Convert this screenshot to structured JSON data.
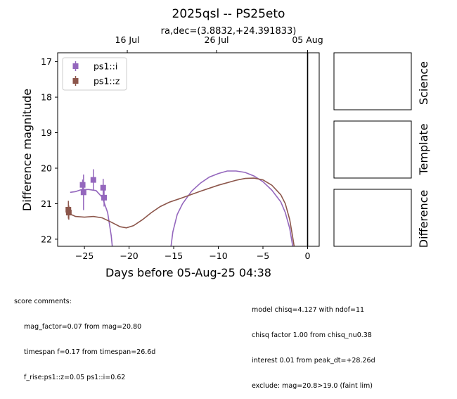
{
  "chart_data": {
    "type": "scatter",
    "title": "2025qsl -- PS25eto",
    "subtitle": "ra,dec=(3.8832,+24.391833)",
    "xlabel": "Days before 05-Aug-25 04:38",
    "ylabel": "Difference magnitude",
    "xlim": [
      -28,
      1.3
    ],
    "ylim": [
      22.2,
      16.75
    ],
    "y_inverted": true,
    "x_ticks": [
      -25,
      -20,
      -15,
      -10,
      -5,
      0
    ],
    "x_tick_labels": [
      "−25",
      "−20",
      "−15",
      "−10",
      "−5",
      "0"
    ],
    "y_ticks": [
      17,
      18,
      19,
      20,
      21,
      22
    ],
    "y_tick_labels": [
      "17",
      "18",
      "19",
      "20",
      "21",
      "22"
    ],
    "top_axis_ticks": [
      {
        "x": -20.2,
        "label": "16 Jul"
      },
      {
        "x": -10.2,
        "label": "26 Jul"
      },
      {
        "x": 0,
        "label": "05 Aug"
      }
    ],
    "vline_x": 0,
    "legend": {
      "placement": "top-left"
    },
    "series": [
      {
        "name": "ps1::i",
        "color": "#9467bd",
        "points": [
          {
            "x": -25.2,
            "y": 20.47,
            "err": 0.15
          },
          {
            "x": -25.1,
            "y": 20.68,
            "err": 0.5
          },
          {
            "x": -24.0,
            "y": 20.33,
            "err": 0.3
          },
          {
            "x": -22.9,
            "y": 20.55,
            "err": 0.25
          },
          {
            "x": -22.8,
            "y": 20.83,
            "err": 0.25
          }
        ],
        "model": [
          [
            -26.6,
            20.68
          ],
          [
            -26.0,
            20.66
          ],
          [
            -25.3,
            20.6
          ],
          [
            -24.5,
            20.6
          ],
          [
            -23.7,
            20.63
          ],
          [
            -23.0,
            20.82
          ],
          [
            -22.4,
            21.25
          ],
          [
            -22.0,
            21.9
          ],
          [
            -21.8,
            22.4
          ],
          [
            -15.4,
            22.4
          ],
          [
            -15.1,
            21.8
          ],
          [
            -14.6,
            21.3
          ],
          [
            -14.0,
            21.0
          ],
          [
            -13.0,
            20.65
          ],
          [
            -12.0,
            20.42
          ],
          [
            -11.0,
            20.25
          ],
          [
            -10.0,
            20.15
          ],
          [
            -9.0,
            20.08
          ],
          [
            -8.0,
            20.08
          ],
          [
            -7.0,
            20.12
          ],
          [
            -6.0,
            20.22
          ],
          [
            -5.0,
            20.38
          ],
          [
            -4.0,
            20.62
          ],
          [
            -3.0,
            20.95
          ],
          [
            -2.5,
            21.25
          ],
          [
            -2.0,
            21.7
          ],
          [
            -1.6,
            22.3
          ]
        ]
      },
      {
        "name": "ps1::z",
        "color": "#8c564b",
        "points": [
          {
            "x": -26.8,
            "y": 21.17,
            "err": 0.25
          },
          {
            "x": -26.75,
            "y": 21.25,
            "err": 0.2
          }
        ],
        "model": [
          [
            -26.7,
            21.28
          ],
          [
            -26.0,
            21.36
          ],
          [
            -25.0,
            21.38
          ],
          [
            -24.0,
            21.36
          ],
          [
            -23.0,
            21.4
          ],
          [
            -22.0,
            21.52
          ],
          [
            -21.0,
            21.65
          ],
          [
            -20.3,
            21.68
          ],
          [
            -19.5,
            21.62
          ],
          [
            -18.5,
            21.45
          ],
          [
            -17.5,
            21.25
          ],
          [
            -16.5,
            21.08
          ],
          [
            -15.5,
            20.96
          ],
          [
            -14.0,
            20.83
          ],
          [
            -12.0,
            20.65
          ],
          [
            -10.0,
            20.48
          ],
          [
            -8.0,
            20.34
          ],
          [
            -7.0,
            20.29
          ],
          [
            -6.0,
            20.28
          ],
          [
            -5.0,
            20.33
          ],
          [
            -4.0,
            20.48
          ],
          [
            -3.0,
            20.75
          ],
          [
            -2.5,
            21.0
          ],
          [
            -2.0,
            21.45
          ],
          [
            -1.6,
            22.05
          ],
          [
            -1.45,
            22.3
          ]
        ]
      }
    ],
    "side_panels": [
      "Science",
      "Template",
      "Difference"
    ]
  },
  "comments_left": {
    "heading": "score comments:",
    "lines": [
      "mag_factor=0.07 from mag=20.80",
      "timespan f=0.17 from timespan=26.6d",
      "f_rise:ps1::z=0.05 ps1::i=0.62"
    ]
  },
  "comments_right": {
    "lines": [
      "model chisq=4.127 with ndof=11",
      "chisq factor 1.00 from chisq_nu0.38",
      "interest 0.01 from peak_dt=+28.26d",
      "exclude: mag=20.8>19.0 (faint lim)"
    ]
  }
}
